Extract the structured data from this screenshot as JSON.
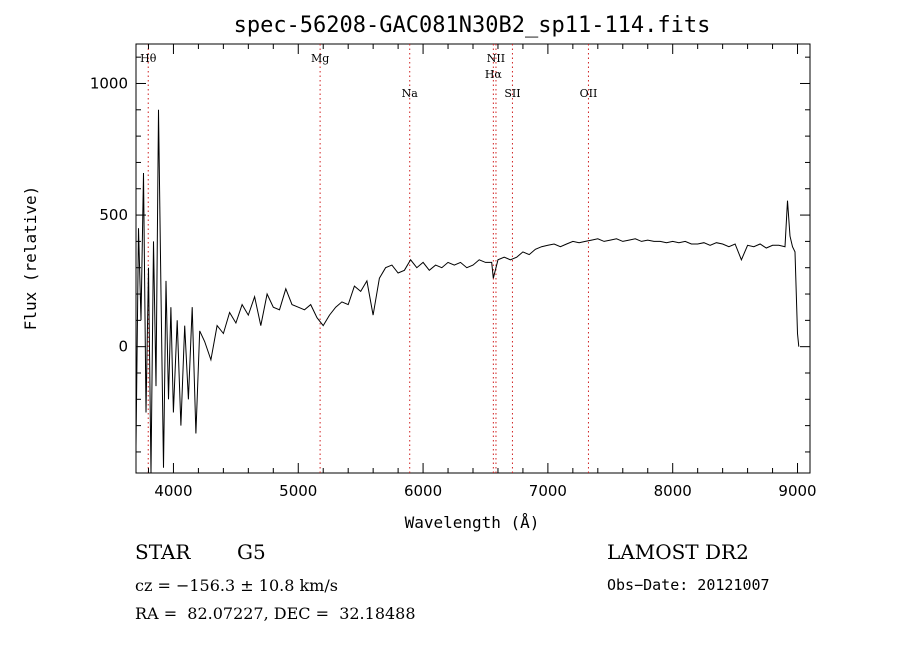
{
  "chart_data": {
    "type": "line",
    "title": "spec-56208-GAC081N30B2_sp11-114.fits",
    "xlabel": "Wavelength (Å)",
    "ylabel": "Flux (relative)",
    "xlim": [
      3700,
      9100
    ],
    "ylim": [
      -480,
      1150
    ],
    "xticks": [
      4000,
      5000,
      6000,
      7000,
      8000,
      9000
    ],
    "xtick_labels": [
      "4000",
      "5000",
      "6000",
      "7000",
      "8000",
      "9000"
    ],
    "yticks": [
      0,
      500,
      1000
    ],
    "ytick_labels": [
      "0",
      "500",
      "1000"
    ],
    "grid": false,
    "spectral_lines": [
      {
        "label": "Hθ",
        "wavelength": 3798,
        "tier": 0
      },
      {
        "label": "Mg",
        "wavelength": 5175,
        "tier": 0
      },
      {
        "label": "Na",
        "wavelength": 5893,
        "tier": 1
      },
      {
        "label": "NII",
        "wavelength": 6584,
        "tier": 0
      },
      {
        "label": "Hα",
        "wavelength": 6563,
        "tier": 2
      },
      {
        "label": "SII",
        "wavelength": 6716,
        "tier": 1
      },
      {
        "label": "OII",
        "wavelength": 7325,
        "tier": 1
      }
    ],
    "series": [
      {
        "x": [
          3700,
          3720,
          3740,
          3760,
          3780,
          3800,
          3820,
          3840,
          3860,
          3880,
          3900,
          3920,
          3940,
          3960,
          3980,
          4000,
          4030,
          4060,
          4090,
          4120,
          4150,
          4180,
          4210,
          4250,
          4300,
          4350,
          4400,
          4450,
          4500,
          4550,
          4600,
          4650,
          4700,
          4750,
          4800,
          4850,
          4900,
          4950,
          5000,
          5050,
          5100,
          5150,
          5200,
          5250,
          5300,
          5350,
          5400,
          5450,
          5500,
          5550,
          5600,
          5650,
          5700,
          5750,
          5800,
          5850,
          5900,
          5950,
          6000,
          6050,
          6100,
          6150,
          6200,
          6250,
          6300,
          6350,
          6400,
          6450,
          6500,
          6550,
          6563,
          6600,
          6650,
          6700,
          6750,
          6800,
          6850,
          6900,
          6950,
          7000,
          7050,
          7100,
          7150,
          7200,
          7250,
          7300,
          7350,
          7400,
          7450,
          7500,
          7550,
          7600,
          7650,
          7700,
          7750,
          7800,
          7850,
          7900,
          7950,
          8000,
          8050,
          8100,
          8150,
          8200,
          8250,
          8300,
          8350,
          8400,
          8450,
          8500,
          8550,
          8600,
          8650,
          8700,
          8750,
          8800,
          8850,
          8900,
          8920,
          8940,
          8960,
          8980,
          9000,
          9010
        ],
        "y": [
          -380,
          450,
          100,
          660,
          -250,
          300,
          -480,
          400,
          -150,
          900,
          200,
          -460,
          250,
          -200,
          150,
          -250,
          100,
          -300,
          80,
          -200,
          150,
          -330,
          60,
          20,
          -50,
          80,
          50,
          130,
          90,
          160,
          120,
          190,
          80,
          200,
          150,
          140,
          220,
          160,
          150,
          140,
          160,
          110,
          80,
          120,
          150,
          170,
          160,
          230,
          210,
          250,
          120,
          260,
          300,
          310,
          280,
          290,
          330,
          300,
          320,
          290,
          310,
          300,
          320,
          310,
          320,
          300,
          310,
          330,
          320,
          320,
          260,
          330,
          340,
          330,
          340,
          360,
          350,
          370,
          380,
          385,
          390,
          380,
          390,
          400,
          395,
          400,
          405,
          410,
          400,
          405,
          410,
          400,
          405,
          410,
          400,
          405,
          400,
          400,
          395,
          400,
          395,
          400,
          390,
          390,
          395,
          385,
          395,
          390,
          380,
          390,
          330,
          385,
          380,
          390,
          375,
          385,
          385,
          380,
          555,
          420,
          380,
          360,
          50,
          0
        ]
      }
    ]
  },
  "footer": {
    "object_class": "STAR",
    "subclass": "G5",
    "cz": "cz = −156.3 ± 10.8 km/s",
    "coords": "RA =  82.07227, DEC =  32.18488",
    "survey": "LAMOST DR2",
    "obs_date": "Obs−Date: 20121007"
  }
}
